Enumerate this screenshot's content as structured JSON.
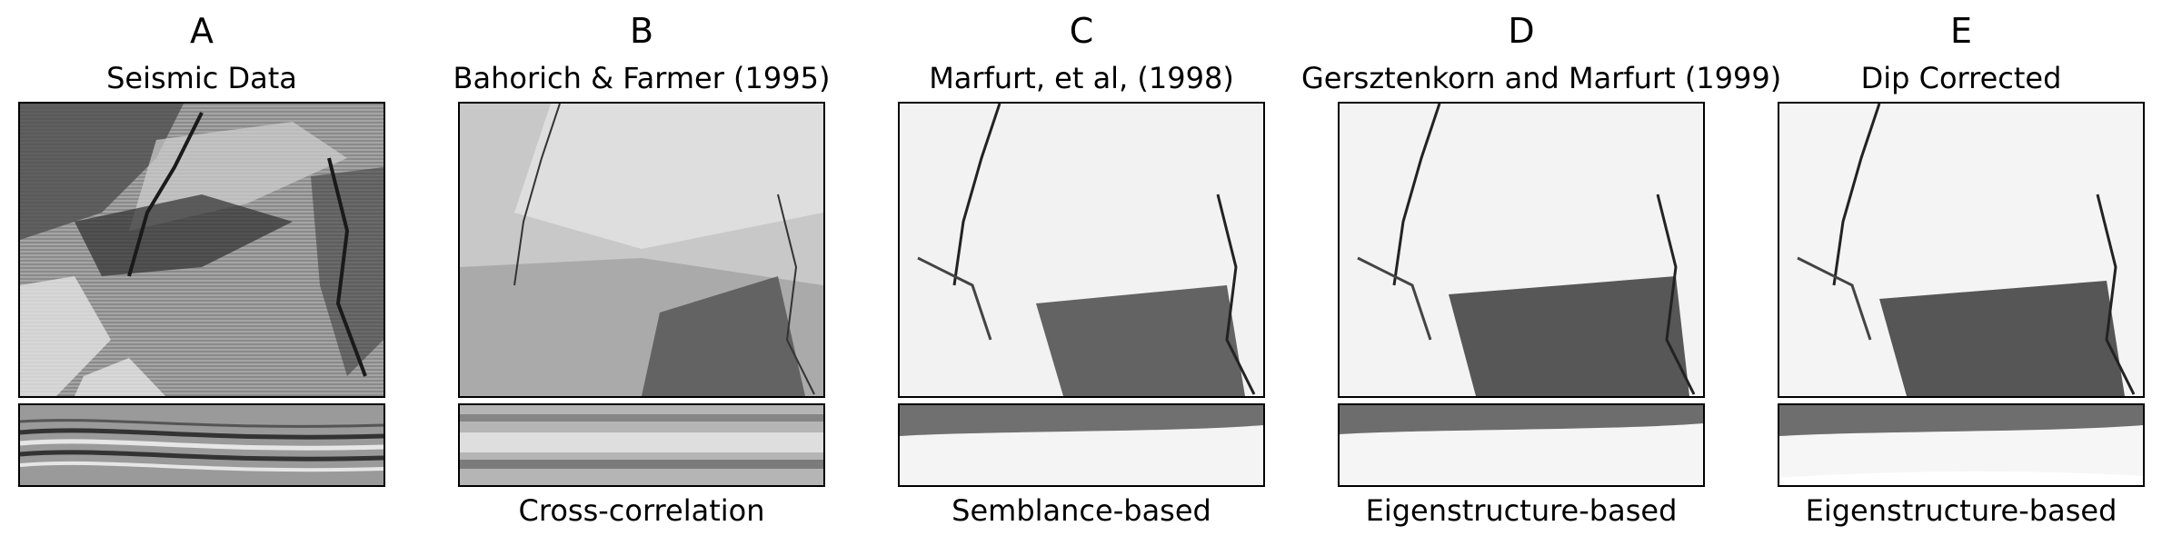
{
  "panels": [
    {
      "letter": "A",
      "title": "Seismic Data",
      "caption": ""
    },
    {
      "letter": "B",
      "title": "Bahorich & Farmer (1995)",
      "caption": "Cross-correlation"
    },
    {
      "letter": "C",
      "title": "Marfurt, et al, (1998)",
      "caption": "Semblance-based"
    },
    {
      "letter": "D",
      "title": "Gersztenkorn and Marfurt (1999)",
      "caption": "Eigenstructure-based"
    },
    {
      "letter": "E",
      "title": "Dip Corrected",
      "caption": "Eigenstructure-based"
    }
  ]
}
